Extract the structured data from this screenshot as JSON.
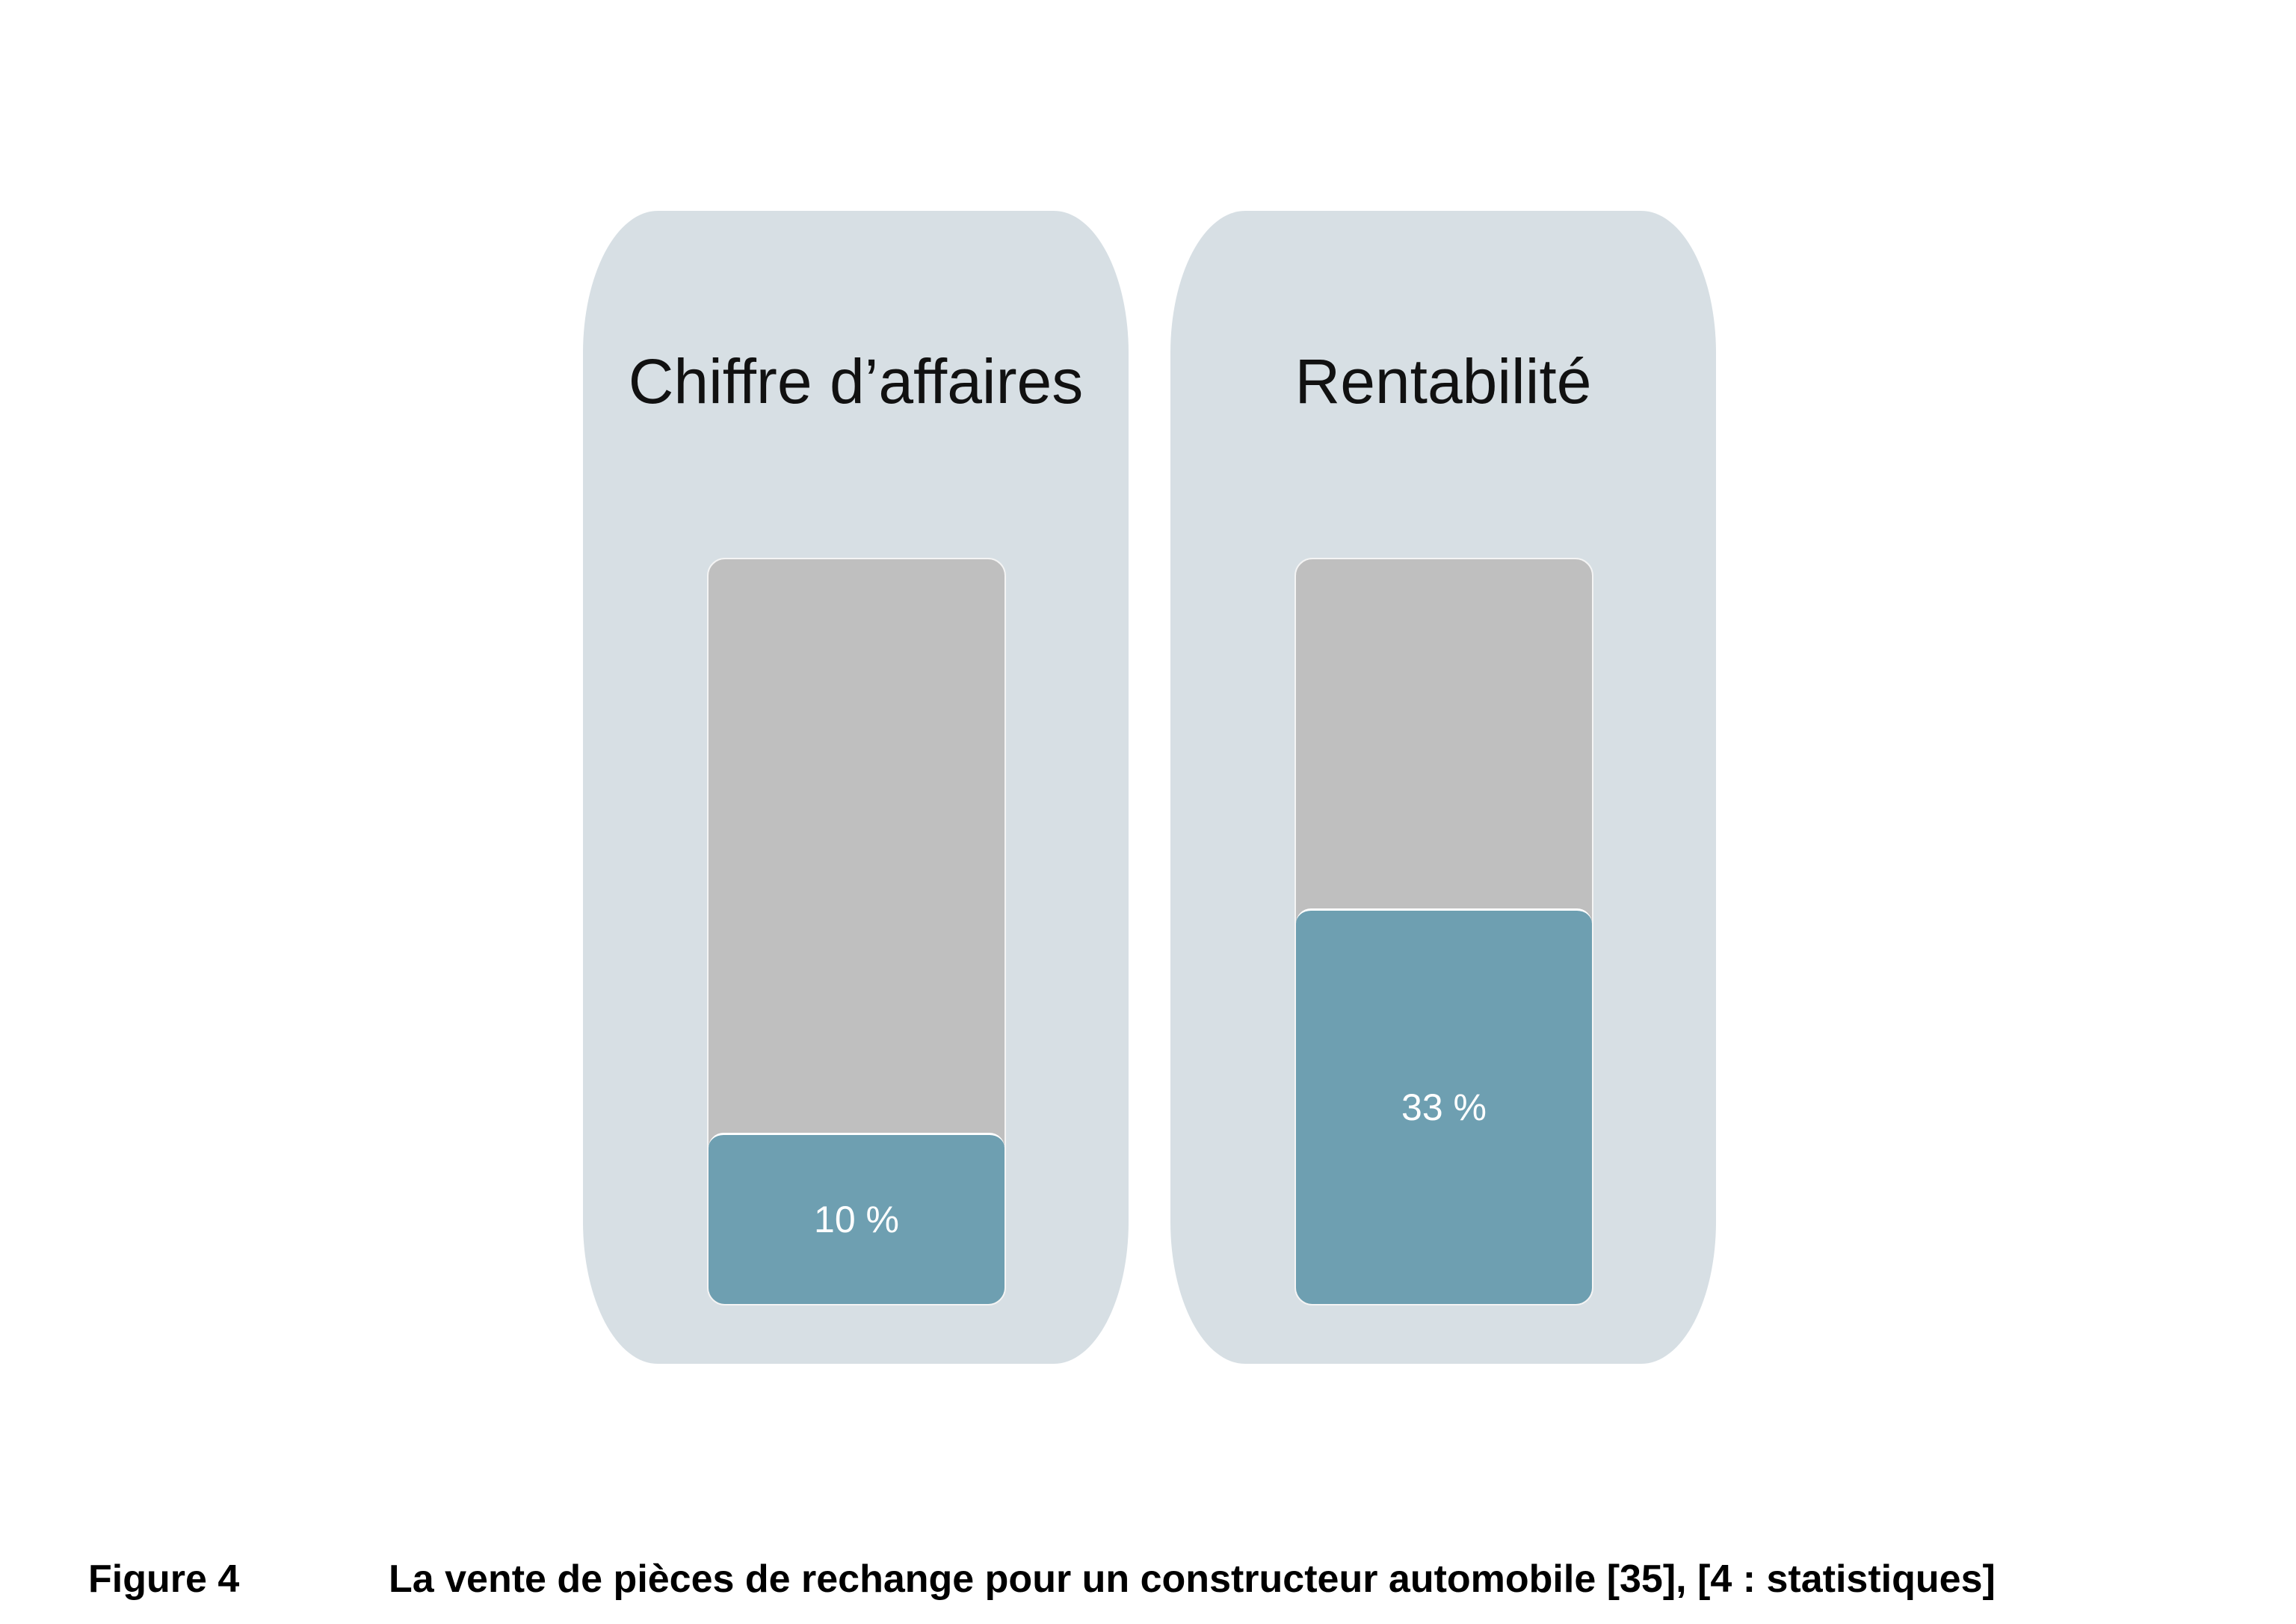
{
  "chart_data": {
    "type": "bar",
    "categories": [
      "Chiffre d’affaires",
      "Rentabilité"
    ],
    "values": [
      10,
      33
    ],
    "value_labels": [
      "10 %",
      "33 %"
    ],
    "ylim": [
      0,
      100
    ]
  },
  "caption": {
    "label": "Figure 4",
    "text": "La vente de pièces de rechange pour un constructeur automobile [35], [4 : statistiques]"
  },
  "colors": {
    "panel": "#d7dfe4",
    "track": "#bfbfbf",
    "fill": "#6e9fb1"
  }
}
